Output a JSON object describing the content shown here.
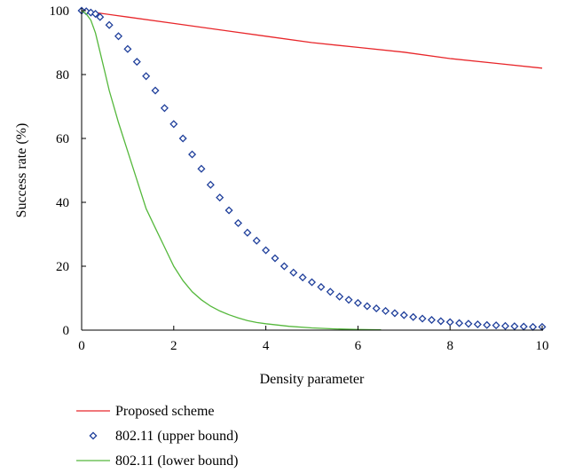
{
  "chart_data": {
    "type": "line",
    "xlabel": "Density parameter",
    "ylabel": "Success rate (%)",
    "xlim": [
      0,
      10
    ],
    "ylim": [
      0,
      100
    ],
    "xticks": [
      0,
      2,
      4,
      6,
      8,
      10
    ],
    "yticks": [
      0,
      20,
      40,
      60,
      80,
      100
    ],
    "grid": false,
    "legend_position": "bottom",
    "series": [
      {
        "name": "Proposed scheme",
        "style": "line",
        "color": "#e8262a",
        "x": [
          0,
          1,
          2,
          3,
          4,
          5,
          6,
          7,
          8,
          9,
          10
        ],
        "y": [
          100,
          98,
          96,
          94,
          92,
          90,
          88.5,
          87,
          85,
          83.5,
          82
        ]
      },
      {
        "name": "802.11 (upper bound)",
        "style": "marker",
        "marker": "diamond",
        "color": "#1f3f9b",
        "x": [
          0,
          0.1,
          0.2,
          0.3,
          0.4,
          0.6,
          0.8,
          1.0,
          1.2,
          1.4,
          1.6,
          1.8,
          2.0,
          2.2,
          2.4,
          2.6,
          2.8,
          3.0,
          3.2,
          3.4,
          3.6,
          3.8,
          4.0,
          4.2,
          4.4,
          4.6,
          4.8,
          5.0,
          5.2,
          5.4,
          5.6,
          5.8,
          6.0,
          6.2,
          6.4,
          6.6,
          6.8,
          7.0,
          7.2,
          7.4,
          7.6,
          7.8,
          8.0,
          8.2,
          8.4,
          8.6,
          8.8,
          9.0,
          9.2,
          9.4,
          9.6,
          9.8,
          10.0
        ],
        "y": [
          100,
          99.8,
          99.4,
          99,
          98,
          95.5,
          92,
          88,
          84,
          79.5,
          75,
          69.5,
          64.5,
          60,
          55,
          50.5,
          45.5,
          41.5,
          37.5,
          33.5,
          30.5,
          28,
          25,
          22.5,
          20,
          18,
          16.5,
          15,
          13.5,
          12,
          10.5,
          9.5,
          8.5,
          7.5,
          6.8,
          6,
          5.3,
          4.7,
          4.1,
          3.6,
          3.2,
          2.8,
          2.5,
          2.2,
          2,
          1.8,
          1.6,
          1.5,
          1.3,
          1.2,
          1.1,
          1.0,
          1.0
        ]
      },
      {
        "name": "802.11 (lower bound)",
        "style": "line",
        "color": "#55b83c",
        "x": [
          0,
          0.1,
          0.2,
          0.3,
          0.4,
          0.5,
          0.6,
          0.8,
          1.0,
          1.2,
          1.4,
          1.6,
          1.8,
          2.0,
          2.2,
          2.4,
          2.6,
          2.8,
          3.0,
          3.2,
          3.4,
          3.6,
          3.8,
          4.0,
          4.5,
          5.0,
          5.5,
          6.0,
          6.5
        ],
        "y": [
          100,
          99,
          97,
          93,
          87,
          81,
          75,
          65,
          56,
          47,
          38,
          32,
          26,
          20,
          15.5,
          12,
          9.5,
          7.5,
          6,
          4.8,
          3.8,
          3,
          2.4,
          2,
          1.2,
          0.7,
          0.4,
          0.2,
          0.1
        ]
      }
    ]
  }
}
